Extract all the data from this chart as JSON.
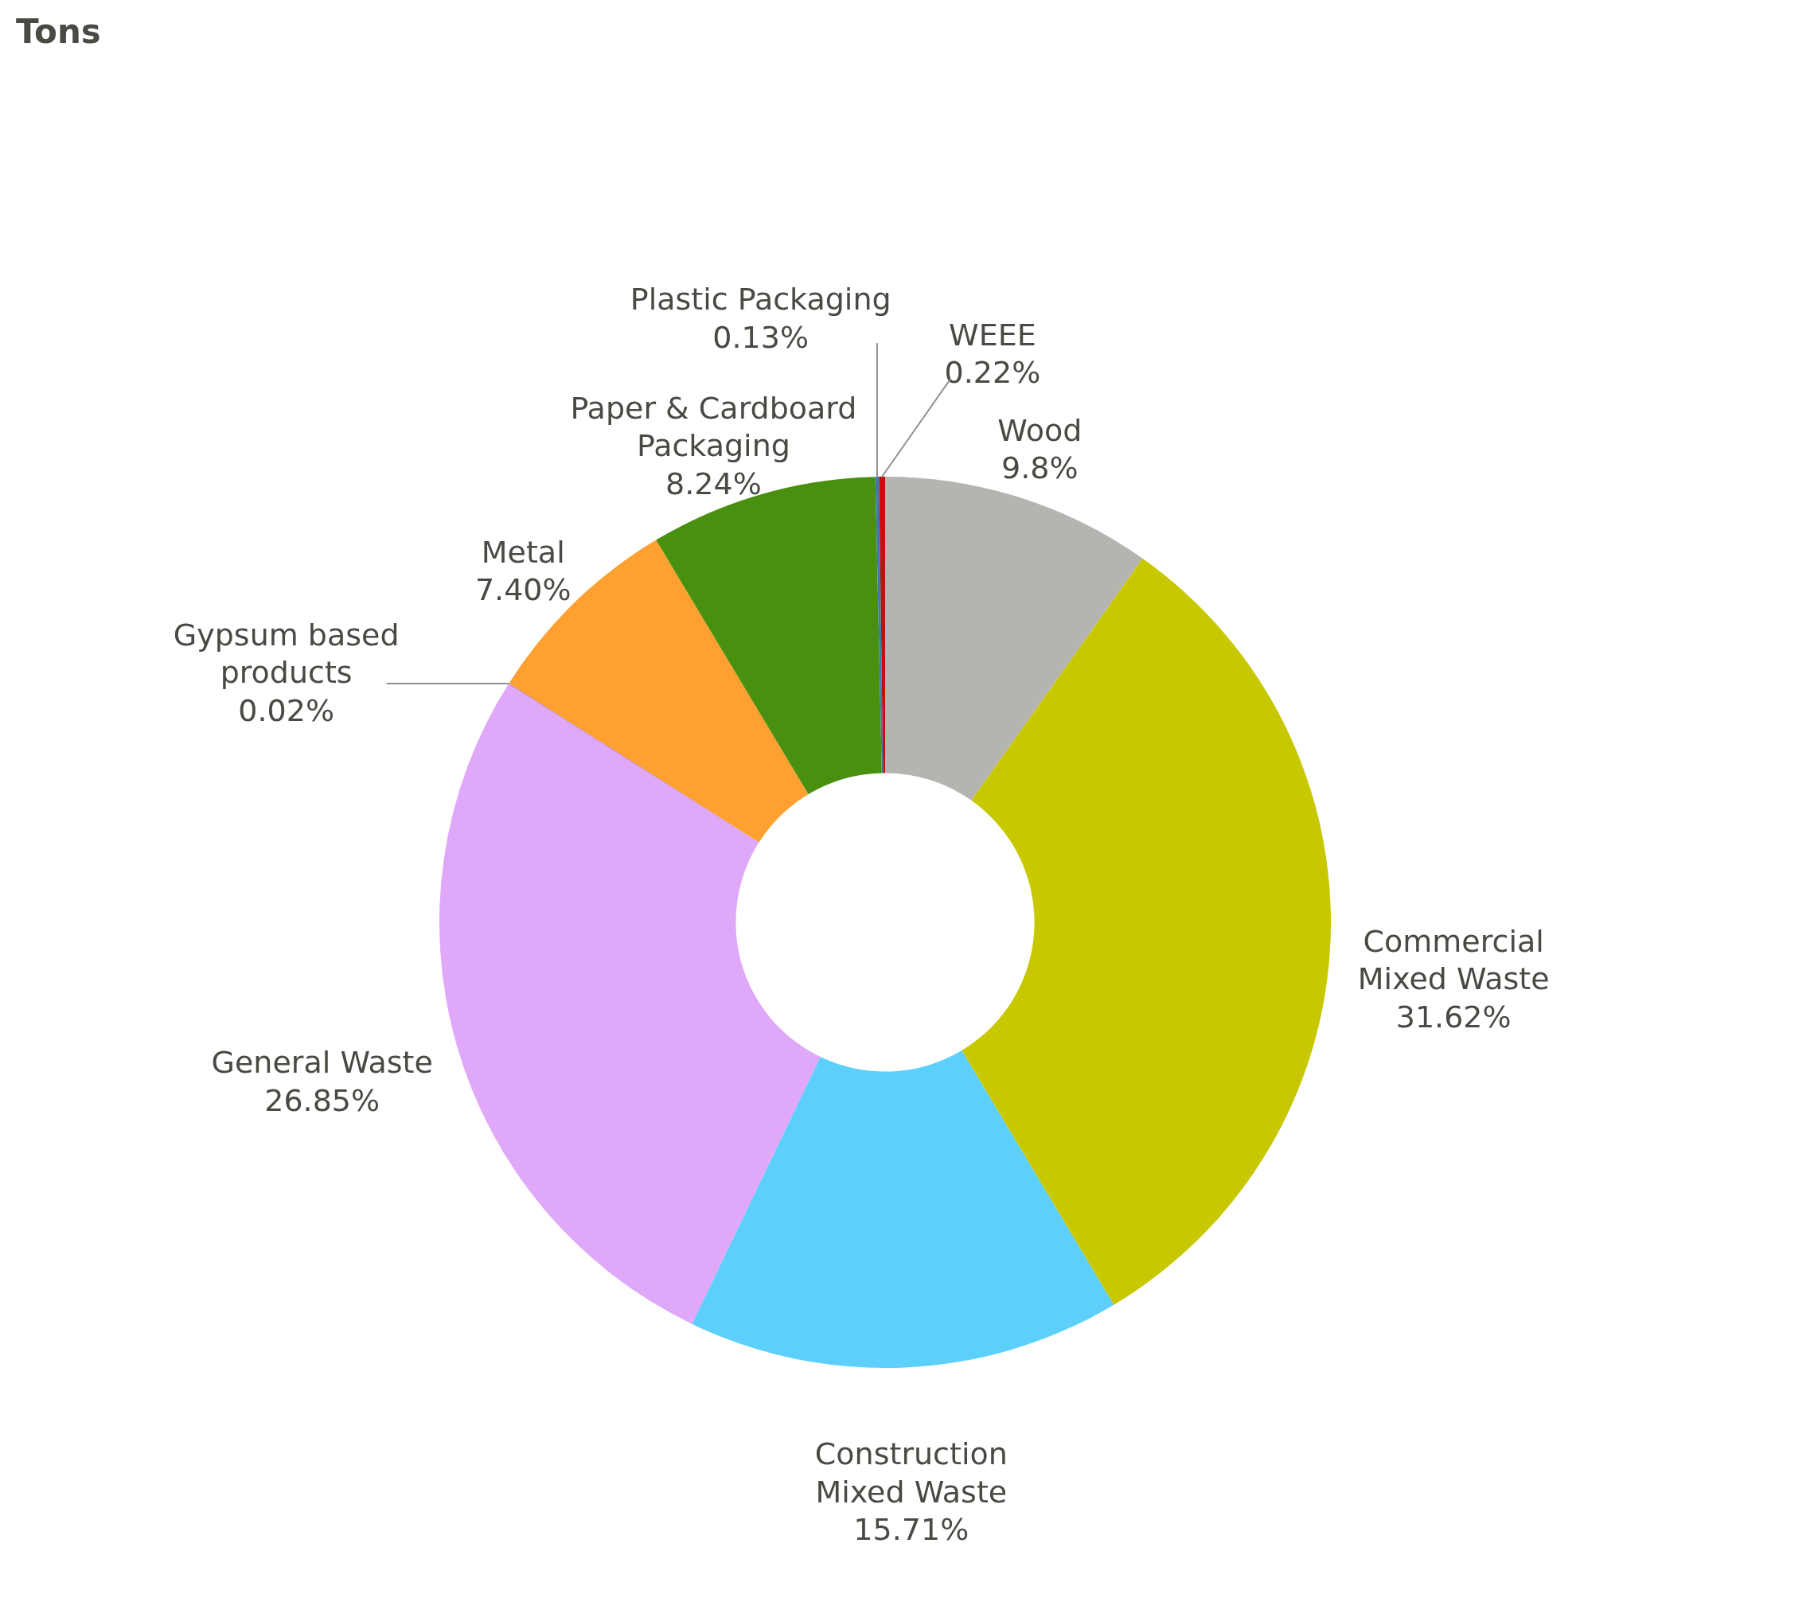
{
  "chart_data": {
    "type": "donut",
    "title": "Tons",
    "categories": [
      "Wood",
      "Commercial Mixed Waste",
      "Construction Mixed Waste",
      "General Waste",
      "Gypsum based products",
      "Metal",
      "Paper & Cardboard Packaging",
      "Plastic Packaging",
      "WEEE"
    ],
    "values": [
      9.8,
      31.62,
      15.71,
      26.85,
      0.02,
      7.4,
      8.24,
      0.13,
      0.22
    ],
    "value_labels": [
      "9.8%",
      "31.62%",
      "15.71%",
      "26.85%",
      "0.02%",
      "7.40%",
      "8.24%",
      "0.13%",
      "0.22%"
    ],
    "colors": [
      "#b4b4b0",
      "#c8c800",
      "#5cd0fb",
      "#e0a8f8",
      "#8a40b0",
      "#ffa030",
      "#4a9010",
      "#3a7ab0",
      "#c01010"
    ],
    "legend": false
  }
}
